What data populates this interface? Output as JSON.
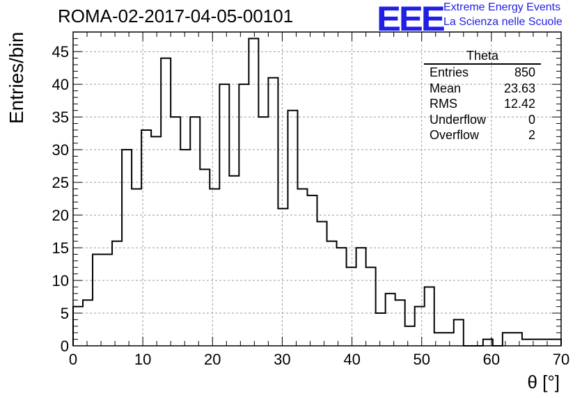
{
  "header": {
    "title": "ROMA-02-2017-04-05-00101",
    "logo_text": "EEE",
    "logo_line1": "Extreme Energy Events",
    "logo_line2": "La Scienza nelle Scuole",
    "logo_color": "#1f1fe6"
  },
  "stats": {
    "name": "Theta",
    "rows": [
      {
        "label": "Entries",
        "value": "850"
      },
      {
        "label": "Mean",
        "value": "23.63"
      },
      {
        "label": "RMS",
        "value": "12.42"
      },
      {
        "label": "Underflow",
        "value": "0"
      },
      {
        "label": "Overflow",
        "value": "2"
      }
    ]
  },
  "chart_data": {
    "type": "bar",
    "style": "step-histogram",
    "title": "ROMA-02-2017-04-05-00101",
    "xlabel": "θ [°]",
    "ylabel": "Entries/bin",
    "xlim": [
      0,
      70
    ],
    "ylim": [
      0,
      48
    ],
    "bin_width": 1.4,
    "bin_edges_start": 0,
    "values": [
      6,
      7,
      14,
      14,
      16,
      30,
      24,
      33,
      32,
      44,
      35,
      30,
      35,
      27,
      24,
      40,
      26,
      40,
      47,
      35,
      41,
      21,
      36,
      24,
      23,
      19,
      16,
      15,
      12,
      15,
      12,
      5,
      8,
      7,
      3,
      6,
      9,
      2,
      2,
      4,
      0,
      0,
      1,
      0,
      2,
      2,
      1,
      1,
      1,
      1
    ],
    "x_ticks": [
      "0",
      "10",
      "20",
      "30",
      "40",
      "50",
      "60",
      "70"
    ],
    "y_ticks": [
      "0",
      "5",
      "10",
      "15",
      "20",
      "25",
      "30",
      "35",
      "40",
      "45"
    ],
    "grid": true,
    "line_color": "#000000"
  }
}
